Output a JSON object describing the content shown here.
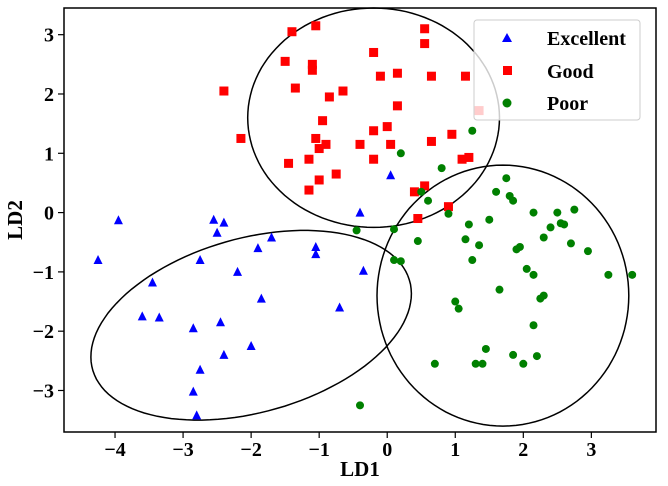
{
  "chart_data": {
    "type": "scatter",
    "xlabel": "LD1",
    "ylabel": "LD2",
    "xlim": [
      -4.75,
      3.95
    ],
    "ylim": [
      -3.7,
      3.45
    ],
    "xticks": [
      -4,
      -3,
      -2,
      -1,
      0,
      1,
      2,
      3
    ],
    "yticks": [
      -3,
      -2,
      -1,
      0,
      1,
      2,
      3
    ],
    "xtick_labels": [
      "−4",
      "−3",
      "−2",
      "−1",
      "0",
      "1",
      "2",
      "3"
    ],
    "ytick_labels": [
      "−3",
      "−2",
      "−1",
      "0",
      "1",
      "2",
      "3"
    ],
    "grid": false,
    "legend_position": "top-right",
    "series": [
      {
        "name": "Excellent",
        "marker": "triangle",
        "color": "#0000ff",
        "points": [
          [
            -4.25,
            -0.8
          ],
          [
            -3.95,
            -0.13
          ],
          [
            -3.45,
            -1.18
          ],
          [
            -3.6,
            -1.75
          ],
          [
            -3.35,
            -1.77
          ],
          [
            -2.75,
            -0.8
          ],
          [
            -2.55,
            -0.12
          ],
          [
            -2.5,
            -0.34
          ],
          [
            -2.4,
            -0.17
          ],
          [
            -2.45,
            -1.85
          ],
          [
            -2.4,
            -2.4
          ],
          [
            -2.2,
            -1.0
          ],
          [
            -2.0,
            -2.25
          ],
          [
            -1.9,
            -0.6
          ],
          [
            -1.85,
            -1.45
          ],
          [
            -1.7,
            -0.42
          ],
          [
            -2.85,
            -1.95
          ],
          [
            -2.75,
            -2.65
          ],
          [
            -2.85,
            -3.02
          ],
          [
            -2.8,
            -3.42
          ],
          [
            -1.05,
            -0.58
          ],
          [
            -1.05,
            -0.7
          ],
          [
            -0.7,
            -1.6
          ],
          [
            -0.4,
            0.0
          ],
          [
            -0.35,
            -0.98
          ],
          [
            0.05,
            0.63
          ]
        ]
      },
      {
        "name": "Good",
        "marker": "square",
        "color": "#ff0000",
        "points": [
          [
            -2.4,
            2.05
          ],
          [
            -2.15,
            1.25
          ],
          [
            -1.5,
            2.55
          ],
          [
            -1.4,
            3.05
          ],
          [
            -1.35,
            2.1
          ],
          [
            -1.45,
            0.83
          ],
          [
            -1.15,
            0.9
          ],
          [
            -1.1,
            2.4
          ],
          [
            -1.1,
            2.5
          ],
          [
            -1.05,
            3.15
          ],
          [
            -1.15,
            0.38
          ],
          [
            -1.05,
            1.25
          ],
          [
            -1.0,
            1.08
          ],
          [
            -1.0,
            0.55
          ],
          [
            -0.95,
            1.55
          ],
          [
            -0.85,
            1.95
          ],
          [
            -0.9,
            1.15
          ],
          [
            -0.75,
            0.65
          ],
          [
            -0.65,
            2.05
          ],
          [
            -0.4,
            1.15
          ],
          [
            -0.2,
            1.38
          ],
          [
            -0.2,
            0.9
          ],
          [
            -0.1,
            2.3
          ],
          [
            -0.2,
            2.7
          ],
          [
            0.05,
            1.15
          ],
          [
            0.15,
            2.35
          ],
          [
            0.15,
            1.8
          ],
          [
            0.0,
            1.45
          ],
          [
            0.4,
            0.35
          ],
          [
            0.45,
            -0.1
          ],
          [
            0.55,
            0.45
          ],
          [
            0.55,
            2.85
          ],
          [
            0.55,
            3.1
          ],
          [
            0.65,
            1.2
          ],
          [
            0.65,
            2.3
          ],
          [
            0.9,
            0.1
          ],
          [
            0.95,
            1.32
          ],
          [
            1.1,
            0.9
          ],
          [
            1.15,
            2.3
          ],
          [
            1.2,
            0.93
          ],
          [
            1.35,
            1.72
          ]
        ]
      },
      {
        "name": "Poor",
        "marker": "circle",
        "color": "#008000",
        "points": [
          [
            -0.45,
            -0.3
          ],
          [
            -0.4,
            -3.25
          ],
          [
            0.1,
            -0.28
          ],
          [
            0.1,
            -0.8
          ],
          [
            0.2,
            -0.82
          ],
          [
            0.2,
            1.0
          ],
          [
            0.45,
            -0.48
          ],
          [
            0.5,
            0.35
          ],
          [
            0.6,
            0.2
          ],
          [
            0.7,
            -2.55
          ],
          [
            0.8,
            0.75
          ],
          [
            0.9,
            -0.02
          ],
          [
            1.0,
            -1.5
          ],
          [
            1.05,
            -1.62
          ],
          [
            1.15,
            -0.45
          ],
          [
            1.2,
            -0.2
          ],
          [
            1.25,
            -0.8
          ],
          [
            1.25,
            1.38
          ],
          [
            1.3,
            -2.55
          ],
          [
            1.35,
            -0.55
          ],
          [
            1.4,
            -2.55
          ],
          [
            1.45,
            -2.3
          ],
          [
            1.5,
            -0.12
          ],
          [
            1.6,
            0.35
          ],
          [
            1.65,
            -1.3
          ],
          [
            1.75,
            0.58
          ],
          [
            1.8,
            0.28
          ],
          [
            1.85,
            0.2
          ],
          [
            1.85,
            -2.4
          ],
          [
            1.9,
            -0.62
          ],
          [
            1.95,
            -0.58
          ],
          [
            2.0,
            -2.55
          ],
          [
            2.05,
            -0.95
          ],
          [
            2.15,
            -1.05
          ],
          [
            2.15,
            0.0
          ],
          [
            2.15,
            -1.9
          ],
          [
            2.2,
            -2.42
          ],
          [
            2.25,
            -1.45
          ],
          [
            2.3,
            -1.4
          ],
          [
            2.3,
            -0.42
          ],
          [
            2.4,
            -0.25
          ],
          [
            2.5,
            0.0
          ],
          [
            2.55,
            -0.18
          ],
          [
            2.6,
            -0.2
          ],
          [
            2.7,
            -0.52
          ],
          [
            2.75,
            0.05
          ],
          [
            2.95,
            -0.65
          ],
          [
            3.25,
            -1.05
          ],
          [
            3.6,
            -1.05
          ]
        ]
      }
    ],
    "ellipses": [
      {
        "group": "Excellent",
        "cx": -2.0,
        "cy": -1.9,
        "rx": 2.45,
        "ry": 1.45,
        "angle_deg": 20
      },
      {
        "group": "Good",
        "cx": -0.2,
        "cy": 1.6,
        "rx": 1.85,
        "ry": 1.85,
        "angle_deg": 0
      },
      {
        "group": "Poor",
        "cx": 1.7,
        "cy": -1.4,
        "rx": 1.85,
        "ry": 2.2,
        "angle_deg": 0
      }
    ]
  }
}
